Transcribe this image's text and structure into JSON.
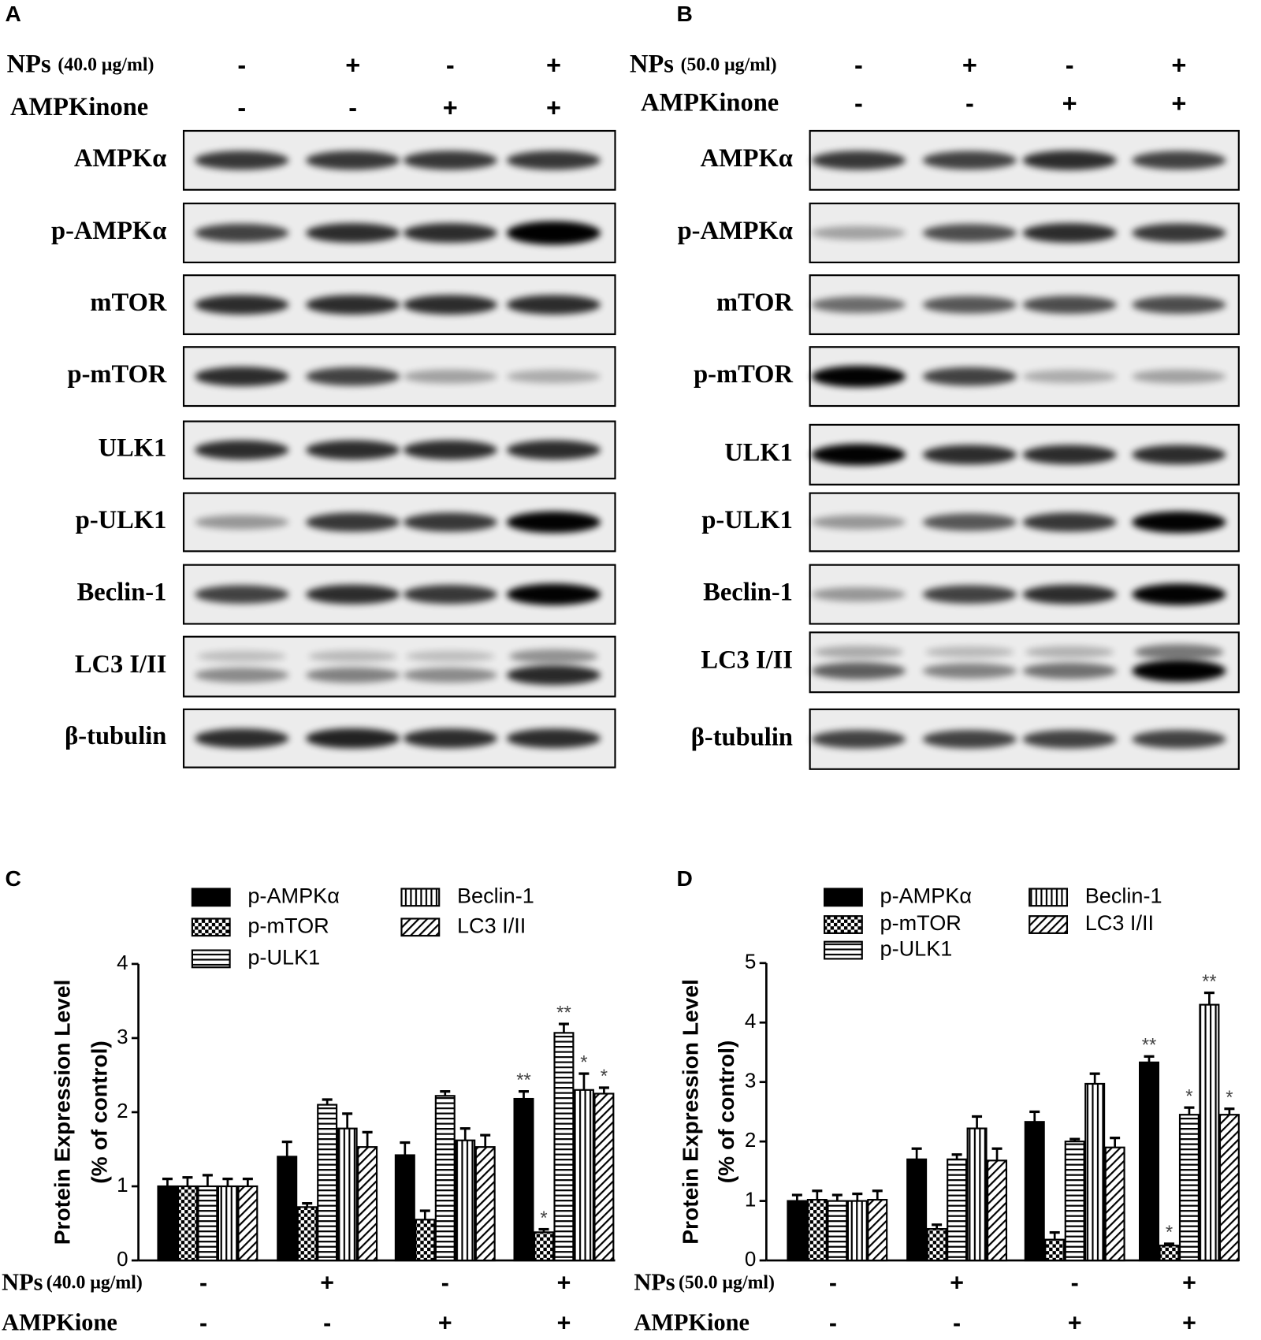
{
  "panels": [
    {
      "label": "A",
      "treatments": [
        {
          "name": "NPs",
          "dose": "(40.0 μg/ml)",
          "signs": [
            "-",
            "+",
            "-",
            "+"
          ]
        },
        {
          "name": "AMPKinone",
          "signs": [
            "-",
            "-",
            "+",
            "+"
          ]
        }
      ],
      "blots": [
        "AMPKα",
        "p-AMPKα",
        "mTOR",
        "p-mTOR",
        "ULK1",
        "p-ULK1",
        "Beclin-1",
        "LC3 I/II",
        "β-tubulin"
      ]
    },
    {
      "label": "B",
      "treatments": [
        {
          "name": "NPs",
          "dose": "(50.0 μg/ml)",
          "signs": [
            "-",
            "+",
            "-",
            "+"
          ]
        },
        {
          "name": "AMPKinone",
          "signs": [
            "-",
            "-",
            "+",
            "+"
          ]
        }
      ],
      "blots": [
        "AMPKα",
        "p-AMPKα",
        "mTOR",
        "p-mTOR",
        "ULK1",
        "p-ULK1",
        "Beclin-1",
        "LC3 I/II",
        "β-tubulin"
      ]
    }
  ],
  "chart_data": [
    {
      "type": "bar",
      "panel_label": "C",
      "ylabel": "Protein Expression Level",
      "ylabel2": "(% of control)",
      "ylim": [
        0,
        4
      ],
      "yticks": [
        0,
        1,
        2,
        3,
        4
      ],
      "categories": [
        null,
        null,
        null,
        null
      ],
      "treatments": [
        {
          "name": "NPs",
          "dose": "(40.0 μg/ml)",
          "signs": [
            "-",
            "+",
            "-",
            "+"
          ]
        },
        {
          "name": "AMPKione",
          "signs": [
            "-",
            "-",
            "+",
            "+"
          ]
        }
      ],
      "series": [
        {
          "name": "p-AMPKα",
          "color": "#000000",
          "pattern": "solid",
          "values": [
            1.0,
            1.4,
            1.42,
            2.18
          ],
          "errors": [
            0.1,
            0.2,
            0.17,
            0.1
          ],
          "annotations": [
            null,
            null,
            null,
            "**"
          ]
        },
        {
          "name": "p-mTOR",
          "color": "#000000",
          "pattern": "checker",
          "values": [
            1.0,
            0.72,
            0.55,
            0.38
          ],
          "errors": [
            0.12,
            0.05,
            0.12,
            0.04
          ],
          "annotations": [
            null,
            null,
            null,
            "*"
          ]
        },
        {
          "name": "p-ULK1",
          "color": "#000000",
          "pattern": "hstripe",
          "values": [
            1.0,
            2.1,
            2.22,
            3.07
          ],
          "errors": [
            0.15,
            0.07,
            0.06,
            0.12
          ],
          "annotations": [
            null,
            null,
            null,
            "**"
          ]
        },
        {
          "name": "Beclin-1",
          "color": "#000000",
          "pattern": "vstripe",
          "values": [
            1.0,
            1.78,
            1.62,
            2.3
          ],
          "errors": [
            0.1,
            0.2,
            0.16,
            0.22
          ],
          "annotations": [
            null,
            null,
            null,
            "*"
          ]
        },
        {
          "name": "LC3 I/II",
          "color": "#000000",
          "pattern": "diag",
          "values": [
            1.0,
            1.53,
            1.53,
            2.25
          ],
          "errors": [
            0.1,
            0.2,
            0.16,
            0.08
          ],
          "annotations": [
            null,
            null,
            null,
            "*"
          ]
        }
      ]
    },
    {
      "type": "bar",
      "panel_label": "D",
      "ylabel": "Protein Expression Level",
      "ylabel2": "(% of control)",
      "ylim": [
        0,
        5
      ],
      "yticks": [
        0,
        1,
        2,
        3,
        4,
        5
      ],
      "categories": [
        null,
        null,
        null,
        null
      ],
      "treatments": [
        {
          "name": "NPs",
          "dose": "(50.0 μg/ml)",
          "signs": [
            "-",
            "+",
            "-",
            "+"
          ]
        },
        {
          "name": "AMPKione",
          "signs": [
            "-",
            "-",
            "+",
            "+"
          ]
        }
      ],
      "series": [
        {
          "name": "p-AMPKα",
          "color": "#000000",
          "pattern": "solid",
          "values": [
            1.0,
            1.7,
            2.33,
            3.33
          ],
          "errors": [
            0.1,
            0.18,
            0.17,
            0.1
          ],
          "annotations": [
            null,
            null,
            null,
            "**"
          ]
        },
        {
          "name": "p-mTOR",
          "color": "#000000",
          "pattern": "checker",
          "values": [
            1.02,
            0.53,
            0.35,
            0.25
          ],
          "errors": [
            0.15,
            0.07,
            0.12,
            0.03
          ],
          "annotations": [
            null,
            null,
            null,
            "*"
          ]
        },
        {
          "name": "p-ULK1",
          "color": "#000000",
          "pattern": "hstripe",
          "values": [
            1.0,
            1.7,
            2.0,
            2.45
          ],
          "errors": [
            0.1,
            0.08,
            0.04,
            0.12
          ],
          "annotations": [
            null,
            null,
            null,
            "*"
          ]
        },
        {
          "name": "Beclin-1",
          "color": "#000000",
          "pattern": "vstripe",
          "values": [
            1.0,
            2.22,
            2.97,
            4.3
          ],
          "errors": [
            0.12,
            0.2,
            0.17,
            0.2
          ],
          "annotations": [
            null,
            null,
            null,
            "**"
          ]
        },
        {
          "name": "LC3 I/II",
          "color": "#000000",
          "pattern": "diag",
          "values": [
            1.02,
            1.68,
            1.9,
            2.45
          ],
          "errors": [
            0.15,
            0.2,
            0.16,
            0.1
          ],
          "annotations": [
            null,
            null,
            null,
            "*"
          ]
        }
      ]
    }
  ]
}
